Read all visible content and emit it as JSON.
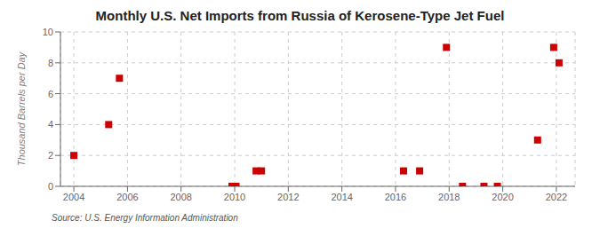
{
  "chart_data": {
    "type": "scatter",
    "title": "Monthly U.S. Net Imports from Russia of Kerosene-Type Jet Fuel",
    "ylabel": "Thousand Barrels per Day",
    "annotations": [
      "Source: U.S. Energy Information Administration"
    ],
    "x": [
      2004.0,
      2005.3,
      2005.7,
      2009.9,
      2010.05,
      2010.8,
      2011.0,
      2016.3,
      2016.9,
      2017.9,
      2018.5,
      2019.3,
      2019.8,
      2021.3,
      2021.9,
      2022.1
    ],
    "values": [
      2,
      4,
      7,
      0,
      0,
      1,
      1,
      1,
      1,
      9,
      0,
      0,
      0,
      3,
      9,
      8
    ],
    "xlim": [
      2003.5,
      2022.7
    ],
    "ylim": [
      0,
      10
    ],
    "xticks": [
      2004,
      2006,
      2008,
      2010,
      2012,
      2014,
      2016,
      2018,
      2020,
      2022
    ],
    "yticks": [
      0,
      2,
      4,
      6,
      8,
      10
    ],
    "grid": true,
    "marker": "square",
    "color": "#cc0000"
  }
}
